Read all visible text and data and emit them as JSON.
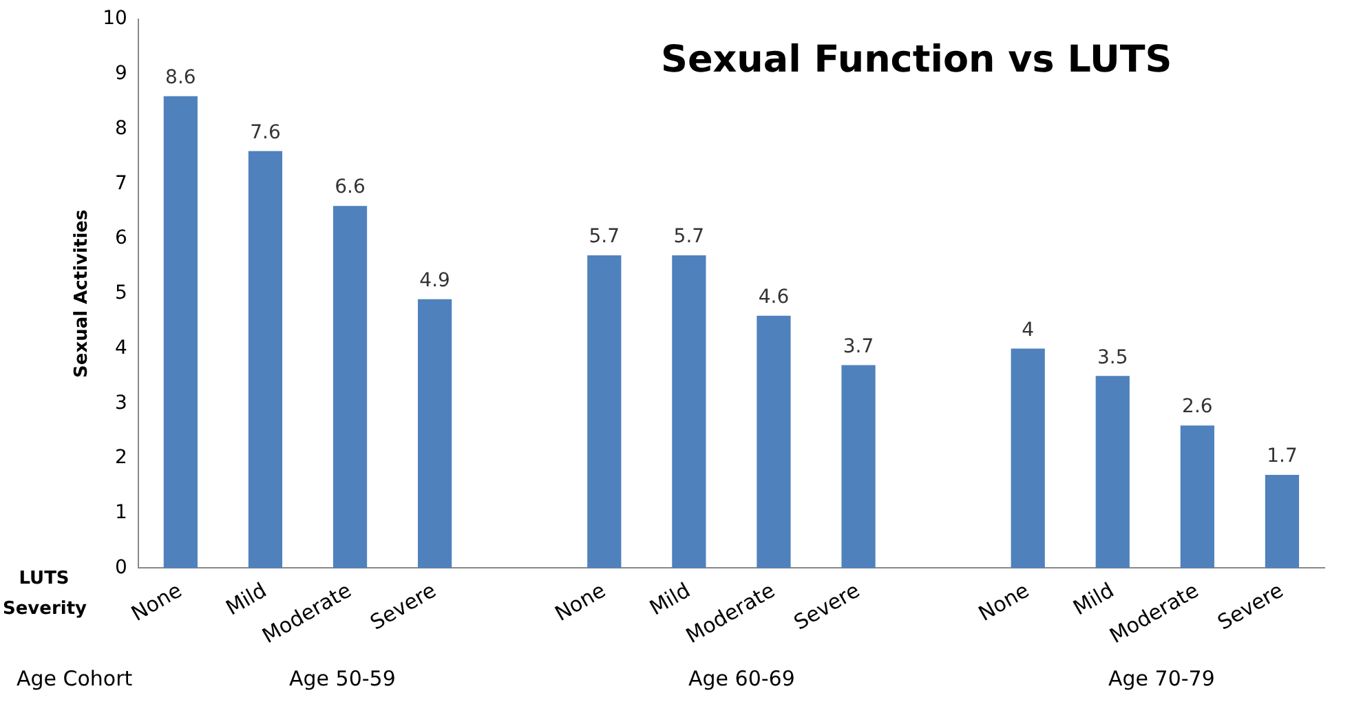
{
  "chart_data": {
    "type": "bar",
    "title": "Sexual Function vs LUTS",
    "ylabel": "Sexual Activities",
    "categories": [
      "None",
      "Mild",
      "Moderate",
      "Severe",
      null,
      "None",
      "Mild",
      "Moderate",
      "Severe",
      null,
      "None",
      "Mild",
      "Moderate",
      "Severe"
    ],
    "values": [
      8.6,
      7.6,
      6.6,
      4.9,
      null,
      5.7,
      5.7,
      4.6,
      3.7,
      null,
      4,
      3.5,
      2.6,
      1.7
    ],
    "color": "#4f81bd",
    "ylim": [
      0,
      10
    ],
    "yticks": [
      0,
      1,
      2,
      3,
      4,
      5,
      6,
      7,
      8,
      9,
      10
    ],
    "grid": false,
    "legend": false,
    "data_labels": true,
    "annotations": [
      "LUTS Severity",
      "Age Cohort",
      "Age 50-59",
      "Age 60-69",
      "Age 70-79"
    ]
  }
}
